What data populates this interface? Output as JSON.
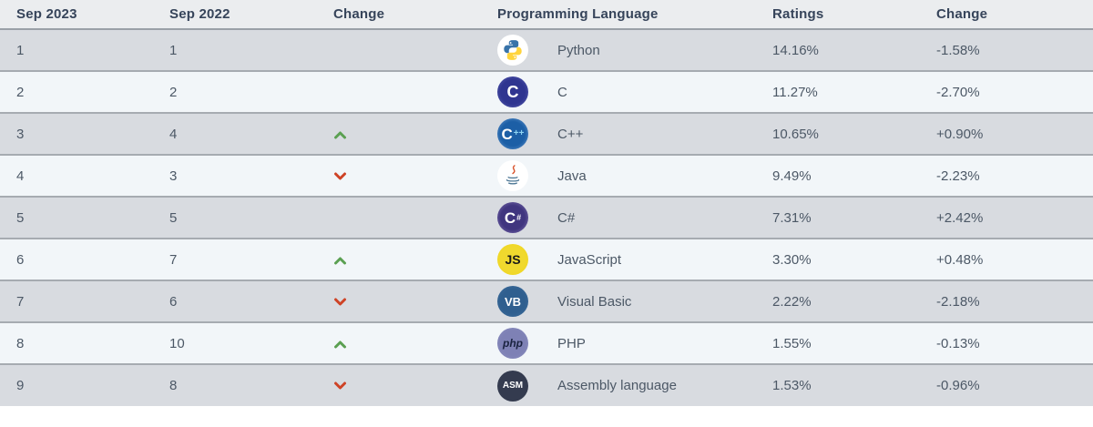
{
  "chart_data": {
    "type": "table",
    "columns": [
      "Sep 2023",
      "Sep 2022",
      "Change",
      "Programming Language",
      "Ratings",
      "Change"
    ],
    "rows": [
      {
        "sep_2023": "1",
        "sep_2022": "1",
        "rank_change": "",
        "language": "Python",
        "icon": "python",
        "ratings": "14.16%",
        "ratings_change": "-1.58%"
      },
      {
        "sep_2023": "2",
        "sep_2022": "2",
        "rank_change": "",
        "language": "C",
        "icon": "c",
        "ratings": "11.27%",
        "ratings_change": "-2.70%"
      },
      {
        "sep_2023": "3",
        "sep_2022": "4",
        "rank_change": "up",
        "language": "C++",
        "icon": "cpp",
        "ratings": "10.65%",
        "ratings_change": "+0.90%"
      },
      {
        "sep_2023": "4",
        "sep_2022": "3",
        "rank_change": "down",
        "language": "Java",
        "icon": "java",
        "ratings": "9.49%",
        "ratings_change": "-2.23%"
      },
      {
        "sep_2023": "5",
        "sep_2022": "5",
        "rank_change": "",
        "language": "C#",
        "icon": "csharp",
        "ratings": "7.31%",
        "ratings_change": "+2.42%"
      },
      {
        "sep_2023": "6",
        "sep_2022": "7",
        "rank_change": "up",
        "language": "JavaScript",
        "icon": "js",
        "ratings": "3.30%",
        "ratings_change": "+0.48%"
      },
      {
        "sep_2023": "7",
        "sep_2022": "6",
        "rank_change": "down",
        "language": "Visual Basic",
        "icon": "vb",
        "ratings": "2.22%",
        "ratings_change": "-2.18%"
      },
      {
        "sep_2023": "8",
        "sep_2022": "10",
        "rank_change": "up",
        "language": "PHP",
        "icon": "php",
        "ratings": "1.55%",
        "ratings_change": "-0.13%"
      },
      {
        "sep_2023": "9",
        "sep_2022": "8",
        "rank_change": "down",
        "language": "Assembly language",
        "icon": "asm",
        "ratings": "1.53%",
        "ratings_change": "-0.96%"
      }
    ]
  },
  "icons": {
    "python": {
      "kind": "svg",
      "bg": "#ffffff"
    },
    "c": {
      "kind": "badge",
      "label": "C",
      "label_size": 18,
      "label_color": "#ffffff",
      "bg_center": "#2f3590",
      "bg_ring": "#6066b6"
    },
    "cpp": {
      "kind": "badge",
      "label": "C",
      "label_size": 17,
      "label_color": "#ffffff",
      "sub": "++",
      "sub_size": 10,
      "sub_color": "#8fd4f2",
      "bg_center": "#1c5fa6",
      "bg_ring": "#6e9dd2"
    },
    "java": {
      "kind": "svg",
      "bg": "#ffffff"
    },
    "csharp": {
      "kind": "badge",
      "label": "C",
      "label_size": 17,
      "label_color": "#ffffff",
      "sub": "#",
      "sub_size": 9,
      "sub_color": "#ffffff",
      "bg_center": "#40357f",
      "bg_ring": "#8a7db8"
    },
    "js": {
      "kind": "badge",
      "label": "JS",
      "label_size": 14,
      "label_color": "#1a1a1a",
      "bg_center": "#f0d92e",
      "bg_ring": "#eed417"
    },
    "vb": {
      "kind": "badge",
      "label": "VB",
      "label_size": 13,
      "label_color": "#ffffff",
      "bg_center": "#2f5f8f",
      "bg_ring": "#41709f"
    },
    "php": {
      "kind": "badge",
      "label": "php",
      "label_size": 12,
      "label_color": "#1a2340",
      "italic": true,
      "bg_center": "#7e81b5",
      "bg_ring": "#8b8ec0"
    },
    "asm": {
      "kind": "badge",
      "label": "ASM",
      "label_size": 10,
      "label_color": "#ffffff",
      "bg_center": "#343b4f",
      "bg_ring": "#343b4f"
    }
  },
  "colors": {
    "up_arrow": "#5ba052",
    "down_arrow": "#ce4326",
    "header_bg": "#ebedef",
    "row_odd_bg": "#d8dbe0",
    "row_even_bg": "#f2f6f9",
    "row_border": "#a6abb1",
    "header_text": "#36445a",
    "cell_text": "#4c5866"
  }
}
